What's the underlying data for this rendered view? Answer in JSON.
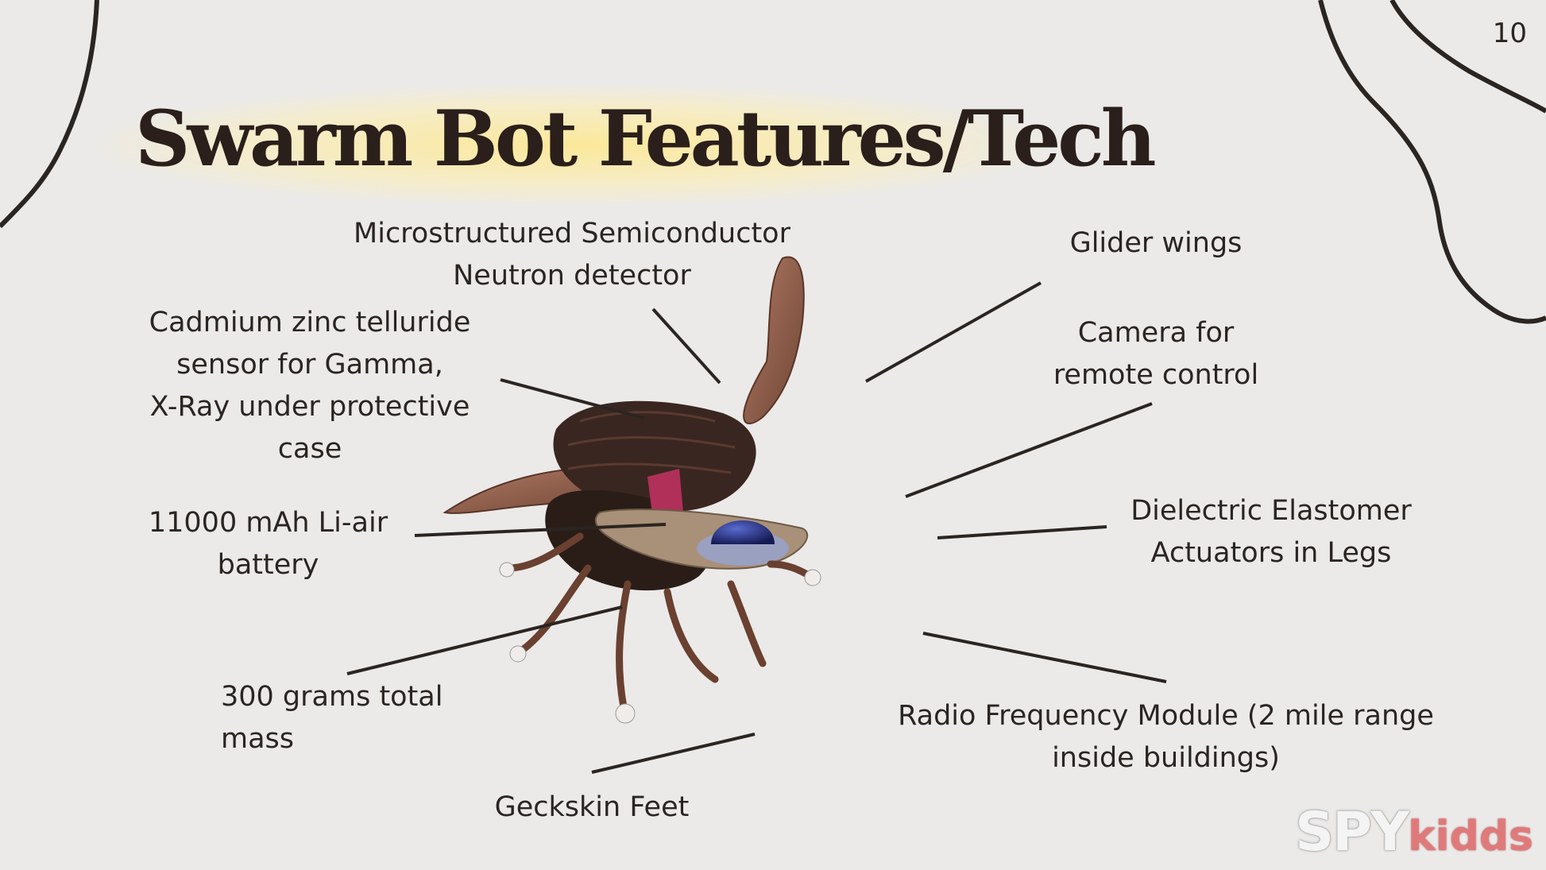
{
  "slide": {
    "page_number": "10",
    "title": "Swarm Bot Features/Tech",
    "logo": {
      "part1": "SPY",
      "part2": "kidds"
    }
  },
  "labels": {
    "neutron": [
      "Microstructured Semiconductor",
      "Neutron detector"
    ],
    "cadmium": [
      "Cadmium zinc telluride",
      "sensor for Gamma,",
      "X-Ray under protective",
      "case"
    ],
    "battery": [
      "11000 mAh Li-air",
      "battery"
    ],
    "mass": [
      "300 grams total",
      "mass"
    ],
    "feet": [
      "Geckskin Feet"
    ],
    "wings": [
      "Glider wings"
    ],
    "camera": [
      "Camera for",
      "remote control"
    ],
    "actuators": [
      "Dielectric Elastomer",
      "Actuators in Legs"
    ],
    "radio": [
      "Radio Frequency Module (2 mile range",
      "inside buildings)"
    ]
  },
  "colors": {
    "background": "#ebeae9",
    "text": "#2b2522",
    "title_glow": "#ffe88c",
    "wing": "#8a5a48",
    "shell": "#3a2620",
    "dome": "#1f2a6b",
    "logo_accent": "#e07a7a"
  }
}
